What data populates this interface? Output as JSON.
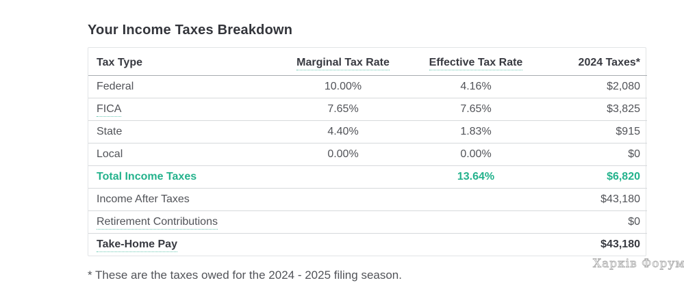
{
  "title": "Your Income Taxes Breakdown",
  "colors": {
    "accent_green": "#23b28c",
    "underline_teal": "#66c7b2",
    "text_dark": "#383a41",
    "text_body": "#515358"
  },
  "table": {
    "columns": [
      {
        "label": "Tax Type",
        "underlined": false
      },
      {
        "label": "Marginal Tax Rate",
        "underlined": true
      },
      {
        "label": "Effective Tax Rate",
        "underlined": true
      },
      {
        "label": "2024 Taxes*",
        "underlined": false
      }
    ],
    "rows": [
      {
        "label": "Federal",
        "label_underlined": false,
        "marginal": "10.00%",
        "effective": "4.16%",
        "taxes": "$2,080",
        "style": ""
      },
      {
        "label": "FICA",
        "label_underlined": true,
        "marginal": "7.65%",
        "effective": "7.65%",
        "taxes": "$3,825",
        "style": ""
      },
      {
        "label": "State",
        "label_underlined": false,
        "marginal": "4.40%",
        "effective": "1.83%",
        "taxes": "$915",
        "style": ""
      },
      {
        "label": "Local",
        "label_underlined": false,
        "marginal": "0.00%",
        "effective": "0.00%",
        "taxes": "$0",
        "style": ""
      },
      {
        "label": "Total Income Taxes",
        "label_underlined": false,
        "marginal": "",
        "effective": "13.64%",
        "taxes": "$6,820",
        "style": "total-row"
      },
      {
        "label": "Income After Taxes",
        "label_underlined": false,
        "marginal": "",
        "effective": "",
        "taxes": "$43,180",
        "style": ""
      },
      {
        "label": "Retirement Contributions",
        "label_underlined": true,
        "marginal": "",
        "effective": "",
        "taxes": "$0",
        "style": ""
      },
      {
        "label": "Take-Home Pay",
        "label_underlined": true,
        "marginal": "",
        "effective": "",
        "taxes": "$43,180",
        "style": "bold-row"
      }
    ]
  },
  "footnote": "* These are the taxes owed for the 2024 - 2025 filing season.",
  "watermark": "Харків Форум"
}
